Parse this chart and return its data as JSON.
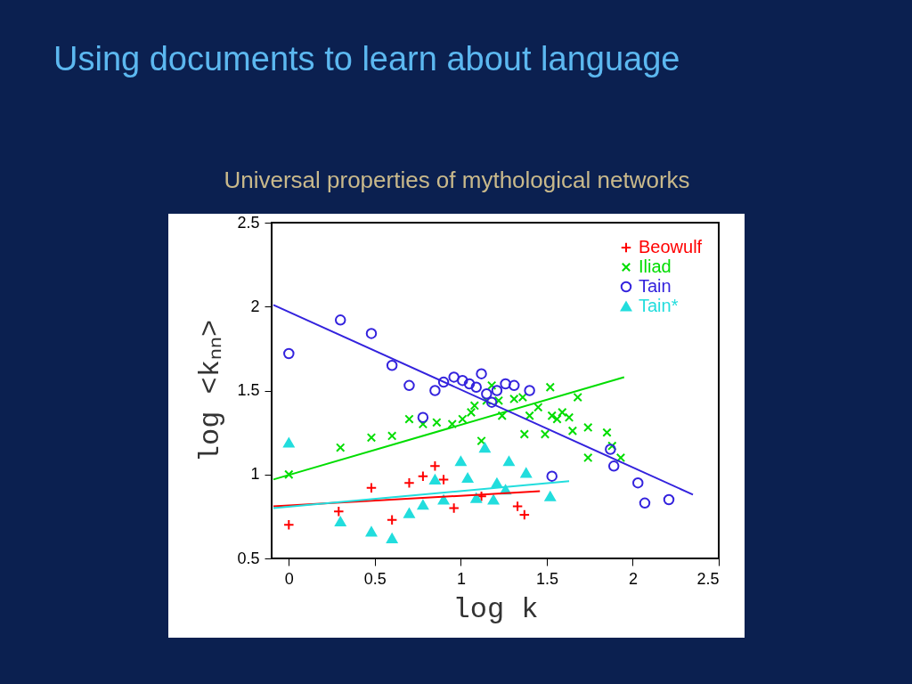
{
  "chart_data": {
    "type": "scatter",
    "title": "Using documents to learn about language",
    "subtitle": "Universal properties of mythological networks ",
    "xlabel": "log k",
    "ylabel": "log <kₙₙ>",
    "xlim": [
      -0.1,
      2.5
    ],
    "ylim": [
      0.5,
      2.5
    ],
    "xticks": [
      0,
      0.5,
      1,
      1.5,
      2,
      2.5
    ],
    "yticks": [
      0.5,
      1,
      1.5,
      2,
      2.5
    ],
    "grid": false,
    "legend": "top right",
    "series": [
      {
        "name": "Beowulf",
        "color": "#ff0000",
        "marker": "cross",
        "x": [
          0,
          0.29,
          0.48,
          0.6,
          0.7,
          0.78,
          0.85,
          0.9,
          0.96,
          1.12,
          1.33,
          1.37
        ],
        "values": [
          0.7,
          0.78,
          0.92,
          0.73,
          0.95,
          0.99,
          1.05,
          0.97,
          0.8,
          0.87,
          0.81,
          0.76
        ]
      },
      {
        "name": "Iliad",
        "color": "#00dd00",
        "marker": "x",
        "x": [
          0,
          0.3,
          0.48,
          0.6,
          0.7,
          0.78,
          0.86,
          0.95,
          1.01,
          1.06,
          1.08,
          1.12,
          1.15,
          1.18,
          1.22,
          1.24,
          1.31,
          1.36,
          1.37,
          1.4,
          1.45,
          1.49,
          1.52,
          1.53,
          1.56,
          1.59,
          1.63,
          1.65,
          1.68,
          1.74,
          1.74,
          1.85,
          1.88,
          1.93
        ],
        "values": [
          1.0,
          1.16,
          1.22,
          1.23,
          1.33,
          1.3,
          1.31,
          1.3,
          1.33,
          1.37,
          1.41,
          1.2,
          1.44,
          1.53,
          1.44,
          1.35,
          1.45,
          1.46,
          1.24,
          1.35,
          1.4,
          1.24,
          1.52,
          1.35,
          1.33,
          1.37,
          1.34,
          1.26,
          1.46,
          1.28,
          1.1,
          1.25,
          1.17,
          1.1
        ]
      },
      {
        "name": "Tain",
        "color": "#3322dd",
        "marker": "circle",
        "x": [
          0,
          0.3,
          0.48,
          0.6,
          0.7,
          0.78,
          0.85,
          0.9,
          0.96,
          1.01,
          1.05,
          1.09,
          1.12,
          1.15,
          1.18,
          1.21,
          1.26,
          1.31,
          1.4,
          1.53,
          1.87,
          1.89,
          2.03,
          2.07,
          2.21
        ],
        "values": [
          1.72,
          1.92,
          1.84,
          1.65,
          1.53,
          1.34,
          1.5,
          1.55,
          1.58,
          1.56,
          1.54,
          1.52,
          1.6,
          1.48,
          1.43,
          1.5,
          1.54,
          1.53,
          1.5,
          0.99,
          1.15,
          1.05,
          0.95,
          0.83,
          0.85
        ]
      },
      {
        "name": "Tain*",
        "color": "#22dddd",
        "marker": "triangle",
        "x": [
          0,
          0.3,
          0.48,
          0.6,
          0.7,
          0.78,
          0.85,
          0.9,
          1.0,
          1.04,
          1.09,
          1.14,
          1.19,
          1.21,
          1.26,
          1.28,
          1.38,
          1.52
        ],
        "values": [
          1.19,
          0.72,
          0.66,
          0.62,
          0.77,
          0.82,
          0.97,
          0.85,
          1.08,
          0.98,
          0.86,
          1.16,
          0.85,
          0.95,
          0.91,
          1.08,
          1.01,
          0.87
        ]
      },
      {
        "type": "line",
        "color": "#ff0000",
        "x": [
          -0.09,
          1.46
        ],
        "values": [
          0.81,
          0.9
        ]
      },
      {
        "type": "line",
        "color": "#00dd00",
        "x": [
          -0.09,
          1.95
        ],
        "values": [
          0.97,
          1.58
        ]
      },
      {
        "type": "line",
        "color": "#3322dd",
        "x": [
          -0.09,
          2.35
        ],
        "values": [
          2.01,
          0.88
        ]
      },
      {
        "type": "line",
        "color": "#22dddd",
        "x": [
          -0.09,
          1.63
        ],
        "values": [
          0.8,
          0.96
        ]
      }
    ]
  }
}
